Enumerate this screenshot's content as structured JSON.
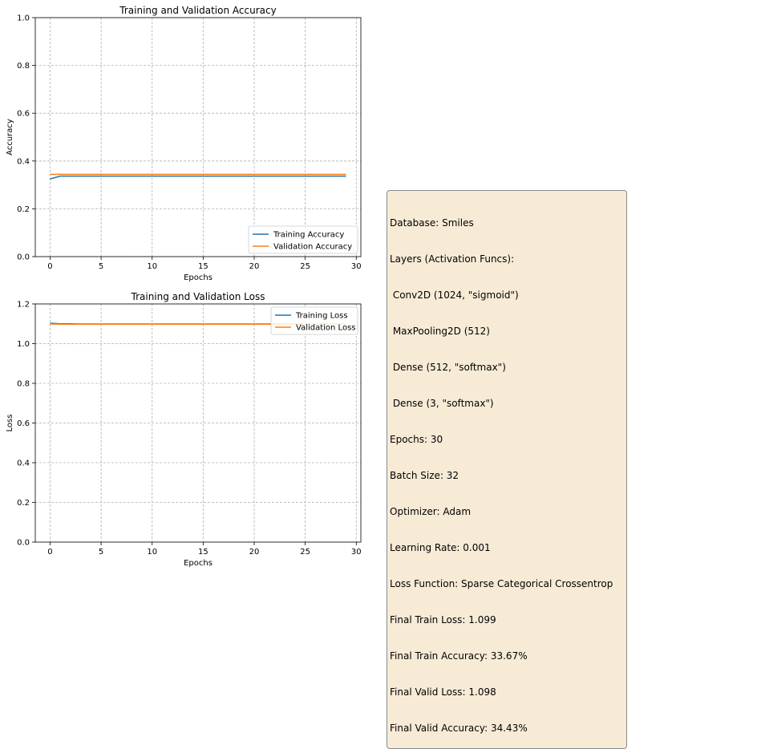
{
  "chart_data": [
    {
      "type": "line",
      "title": "Training and Validation Accuracy",
      "xlabel": "Epochs",
      "ylabel": "Accuracy",
      "xlim": [
        -1.45,
        30.45
      ],
      "ylim": [
        0,
        1.0
      ],
      "xticks": [
        0,
        5,
        10,
        15,
        20,
        25,
        30
      ],
      "yticks": [
        0.0,
        0.2,
        0.4,
        0.6,
        0.8,
        1.0
      ],
      "xtick_labels": [
        "0",
        "5",
        "10",
        "15",
        "20",
        "25",
        "30"
      ],
      "ytick_labels": [
        "0.0",
        "0.2",
        "0.4",
        "0.6",
        "0.8",
        "1.0"
      ],
      "grid": true,
      "legend": "lower right",
      "x": [
        0,
        1,
        2,
        3,
        4,
        5,
        6,
        7,
        8,
        9,
        10,
        11,
        12,
        13,
        14,
        15,
        16,
        17,
        18,
        19,
        20,
        21,
        22,
        23,
        24,
        25,
        26,
        27,
        28,
        29
      ],
      "series": [
        {
          "name": "Training Accuracy",
          "color": "#1f77b4",
          "values": [
            0.325,
            0.3367,
            0.3367,
            0.3367,
            0.3367,
            0.3367,
            0.3367,
            0.3367,
            0.3367,
            0.3367,
            0.3367,
            0.3367,
            0.3367,
            0.3367,
            0.3367,
            0.3367,
            0.3367,
            0.3367,
            0.3367,
            0.3367,
            0.3367,
            0.3367,
            0.3367,
            0.3367,
            0.3367,
            0.3367,
            0.3367,
            0.3367,
            0.3367,
            0.3367
          ]
        },
        {
          "name": "Validation Accuracy",
          "color": "#ff7f0e",
          "values": [
            0.3443,
            0.3443,
            0.3443,
            0.3443,
            0.3443,
            0.3443,
            0.3443,
            0.3443,
            0.3443,
            0.3443,
            0.3443,
            0.3443,
            0.3443,
            0.3443,
            0.3443,
            0.3443,
            0.3443,
            0.3443,
            0.3443,
            0.3443,
            0.3443,
            0.3443,
            0.3443,
            0.3443,
            0.3443,
            0.3443,
            0.3443,
            0.3443,
            0.3443,
            0.3443
          ]
        }
      ]
    },
    {
      "type": "line",
      "title": "Training and Validation Loss",
      "xlabel": "Epochs",
      "ylabel": "Loss",
      "xlim": [
        -1.45,
        30.45
      ],
      "ylim": [
        0,
        1.2
      ],
      "xticks": [
        0,
        5,
        10,
        15,
        20,
        25,
        30
      ],
      "yticks": [
        0.0,
        0.2,
        0.4,
        0.6,
        0.8,
        1.0,
        1.2
      ],
      "xtick_labels": [
        "0",
        "5",
        "10",
        "15",
        "20",
        "25",
        "30"
      ],
      "ytick_labels": [
        "0.0",
        "0.2",
        "0.4",
        "0.6",
        "0.8",
        "1.0",
        "1.2"
      ],
      "grid": true,
      "legend": "upper right",
      "x": [
        0,
        1,
        2,
        3,
        4,
        5,
        6,
        7,
        8,
        9,
        10,
        11,
        12,
        13,
        14,
        15,
        16,
        17,
        18,
        19,
        20,
        21,
        22,
        23,
        24,
        25,
        26,
        27,
        28,
        29
      ],
      "series": [
        {
          "name": "Training Loss",
          "color": "#1f77b4",
          "values": [
            1.103,
            1.1,
            1.1,
            1.099,
            1.099,
            1.099,
            1.099,
            1.099,
            1.099,
            1.099,
            1.099,
            1.099,
            1.099,
            1.099,
            1.099,
            1.099,
            1.099,
            1.099,
            1.099,
            1.099,
            1.099,
            1.099,
            1.099,
            1.099,
            1.099,
            1.099,
            1.099,
            1.099,
            1.099,
            1.099
          ]
        },
        {
          "name": "Validation Loss",
          "color": "#ff7f0e",
          "values": [
            1.099,
            1.098,
            1.098,
            1.098,
            1.098,
            1.098,
            1.098,
            1.098,
            1.098,
            1.098,
            1.098,
            1.098,
            1.098,
            1.098,
            1.098,
            1.098,
            1.098,
            1.098,
            1.098,
            1.098,
            1.098,
            1.098,
            1.098,
            1.098,
            1.098,
            1.098,
            1.098,
            1.098,
            1.098,
            1.098
          ]
        }
      ]
    }
  ],
  "info_box": {
    "background": "#f7ebd6",
    "lines": [
      "Database: Smiles",
      "Layers (Activation Funcs):",
      " Conv2D (1024, \"sigmoid\")",
      " MaxPooling2D (512)",
      " Dense (512, \"softmax\")",
      " Dense (3, \"softmax\")",
      "Epochs: 30",
      "Batch Size: 32",
      "Optimizer: Adam",
      "Learning Rate: 0.001",
      "Loss Function: Sparse Categorical Crossentrop",
      "Final Train Loss: 1.099",
      "Final Train Accuracy: 33.67%",
      "Final Valid Loss: 1.098",
      "Final Valid Accuracy: 34.43%"
    ]
  }
}
